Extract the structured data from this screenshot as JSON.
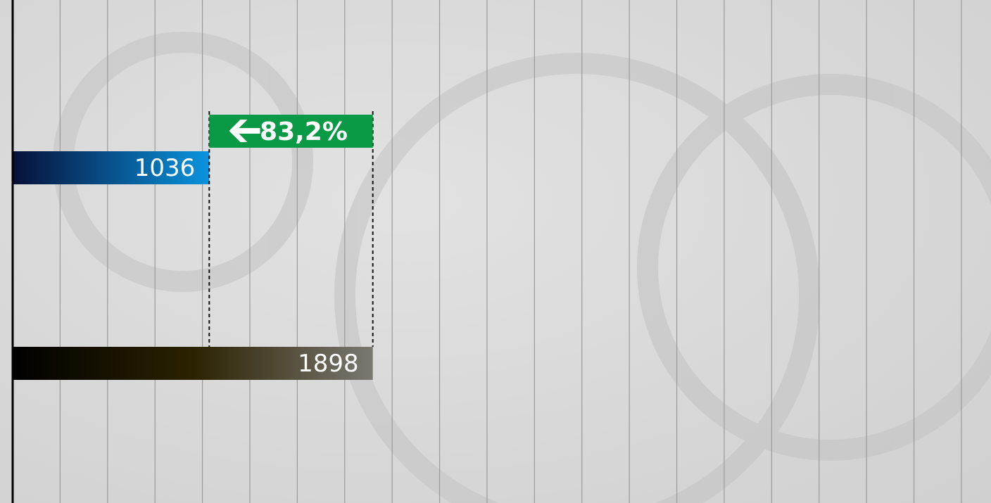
{
  "chart_data": {
    "type": "hbar",
    "categories": [
      null,
      null
    ],
    "values": [
      1036,
      1898
    ],
    "colors": [
      [
        "#061038",
        "#0a94de"
      ],
      [
        "#000000",
        "#2b2200",
        "#7a7872"
      ]
    ],
    "xlim": [
      0,
      5156
    ],
    "xticks": [
      0,
      250,
      500,
      750,
      1000,
      1250,
      1500,
      1750,
      2000,
      2250,
      2500,
      2750,
      3000,
      3250,
      3500,
      3750,
      4000,
      4250,
      4500,
      4750,
      5000
    ],
    "grid": true,
    "annotation": {
      "text": "83,2%",
      "color": "#0a9a46"
    }
  }
}
